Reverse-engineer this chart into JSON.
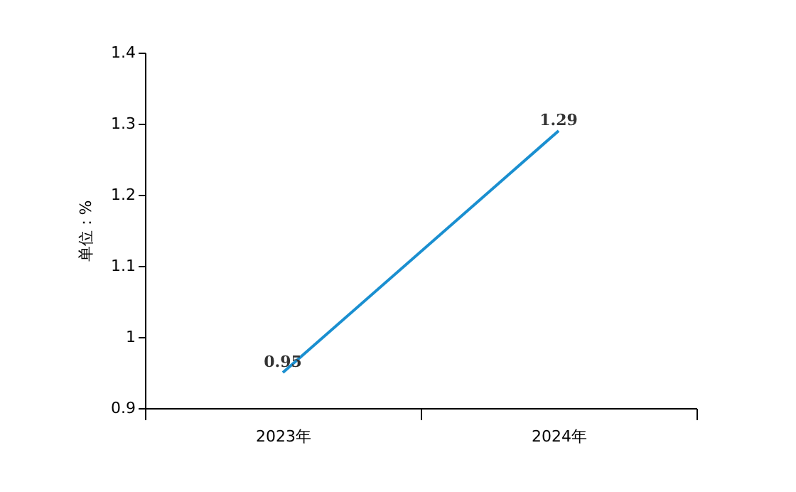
{
  "chart_data": {
    "type": "line",
    "ylabel": "单位：%",
    "categories": [
      "2023年",
      "2024年"
    ],
    "series": [
      {
        "color": "#1a8fd0",
        "values": [
          0.95,
          1.29
        ]
      }
    ],
    "ylim": [
      0.9,
      1.4
    ],
    "yticks": [
      0.9,
      1,
      1.1,
      1.2,
      1.3,
      1.4
    ],
    "data_labels": true,
    "grid": false,
    "marker": "none",
    "line_style": "solid"
  }
}
